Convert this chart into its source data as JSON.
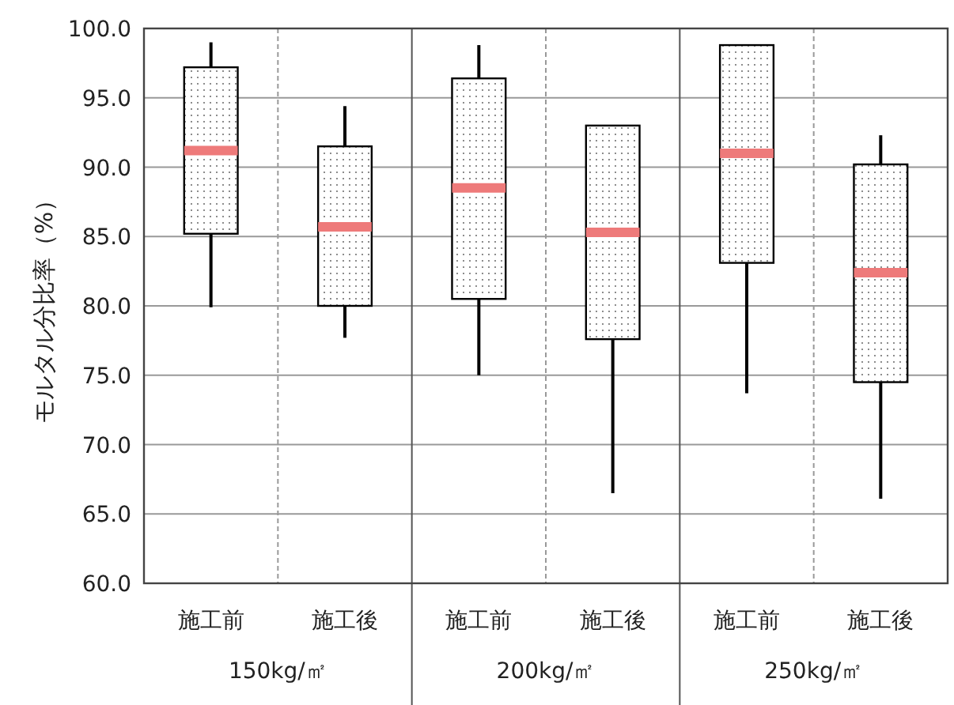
{
  "chart_data": {
    "type": "box",
    "ylabel": "モルタル分比率（%）",
    "categories": [
      "施工前",
      "施工後",
      "施工前",
      "施工後",
      "施工前",
      "施工後"
    ],
    "boxes": [
      {
        "low": 79.9,
        "q1": 85.2,
        "median": 91.2,
        "q3": 97.2,
        "high": 99.0
      },
      {
        "low": 77.7,
        "q1": 80.0,
        "median": 85.7,
        "q3": 91.5,
        "high": 94.4
      },
      {
        "low": 75.0,
        "q1": 80.5,
        "median": 88.5,
        "q3": 96.4,
        "high": 98.8
      },
      {
        "low": 66.5,
        "q1": 77.6,
        "median": 85.3,
        "q3": 93.0,
        "high": 93.0
      },
      {
        "low": 73.7,
        "q1": 83.1,
        "median": 91.0,
        "q3": 98.8,
        "high": 98.8
      },
      {
        "low": 66.1,
        "q1": 74.5,
        "median": 82.4,
        "q3": 90.2,
        "high": 92.3
      }
    ],
    "ylim": [
      60,
      100
    ],
    "yticks": [
      {
        "value": 60,
        "label": "60.0"
      },
      {
        "value": 65,
        "label": "65.0"
      },
      {
        "value": 70,
        "label": "70.0"
      },
      {
        "value": 75,
        "label": "75.0"
      },
      {
        "value": 80,
        "label": "80.0"
      },
      {
        "value": 85,
        "label": "85.0"
      },
      {
        "value": 90,
        "label": "90.0"
      },
      {
        "value": 95,
        "label": "95.0"
      },
      {
        "value": 100,
        "label": "100.0"
      }
    ],
    "grid": "y",
    "annotations": [
      "150kg/㎡",
      "200kg/㎡",
      "250kg/㎡"
    ]
  }
}
